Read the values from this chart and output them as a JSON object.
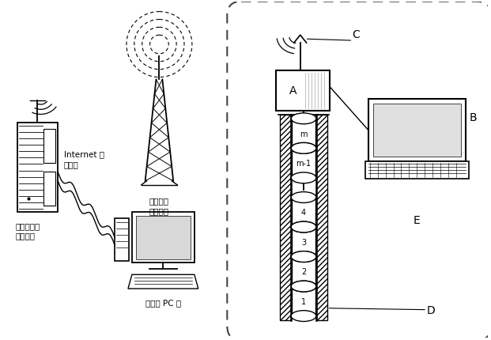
{
  "bg_color": "#ffffff",
  "lc": "#000000",
  "labels": {
    "mobile_station_line1": "移动通讯",
    "mobile_station_line2": "电话基站",
    "mobile_switch_line1": "移动通讯电",
    "mobile_switch_line2": "话交换机",
    "internet_line1": "Internet 宽",
    "internet_line2": "带网线",
    "remote_pc": "远方的 PC 机",
    "sensor_labels": [
      "m",
      "m-1",
      "4",
      "3",
      "2",
      "1"
    ],
    "A": "A",
    "B": "B",
    "C": "C",
    "D": "D",
    "E": "E"
  },
  "figsize": [
    6.21,
    4.31
  ],
  "dpi": 100
}
